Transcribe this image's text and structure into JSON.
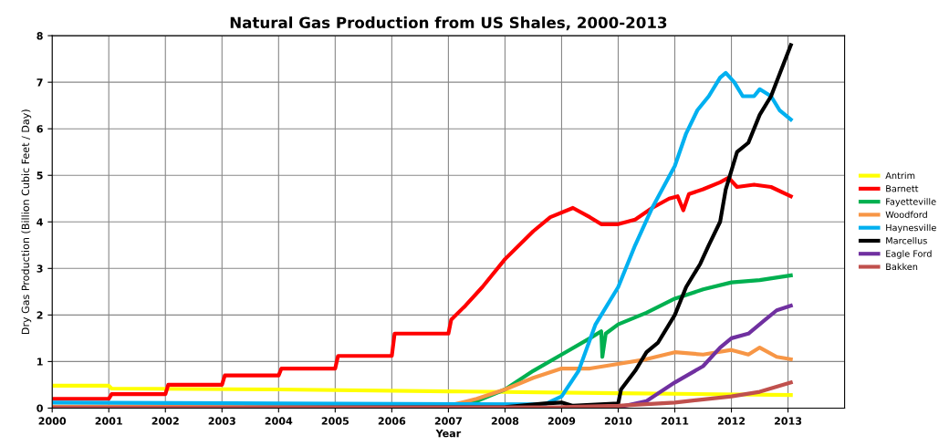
{
  "chart_data": {
    "type": "line",
    "title": "Natural Gas Production from US Shales, 2000-2013",
    "xlabel": "Year",
    "ylabel": "Dry Gas Production (Billion Cubic Feet / Day)",
    "xlim": [
      2000,
      2014
    ],
    "xticks": [
      2000,
      2001,
      2002,
      2003,
      2004,
      2005,
      2006,
      2007,
      2008,
      2009,
      2010,
      2011,
      2012,
      2013
    ],
    "ylim": [
      0,
      8
    ],
    "yticks": [
      0,
      1,
      2,
      3,
      4,
      5,
      6,
      7,
      8
    ],
    "grid": true,
    "legend": "right",
    "marker": "none",
    "line_style": "solid",
    "series": [
      {
        "name": "Antrim",
        "color": "#ffff00",
        "x": [
          2000,
          2001,
          2001.05,
          2004,
          2007,
          2010,
          2013.05
        ],
        "values": [
          0.48,
          0.48,
          0.42,
          0.4,
          0.36,
          0.32,
          0.28
        ]
      },
      {
        "name": "Barnett",
        "color": "#ff0000",
        "x": [
          2000,
          2001,
          2001.05,
          2002,
          2002.05,
          2003,
          2003.05,
          2004,
          2004.05,
          2005,
          2005.05,
          2006,
          2006.05,
          2007,
          2007.05,
          2007.3,
          2007.6,
          2008,
          2008.5,
          2008.8,
          2009.2,
          2009.5,
          2009.7,
          2010,
          2010.3,
          2010.6,
          2010.9,
          2011.05,
          2011.15,
          2011.25,
          2011.5,
          2011.8,
          2011.95,
          2012.1,
          2012.4,
          2012.7,
          2013.05
        ],
        "values": [
          0.2,
          0.2,
          0.3,
          0.3,
          0.5,
          0.5,
          0.7,
          0.7,
          0.85,
          0.85,
          1.12,
          1.12,
          1.6,
          1.6,
          1.9,
          2.2,
          2.6,
          3.2,
          3.8,
          4.1,
          4.3,
          4.1,
          3.95,
          3.95,
          4.05,
          4.3,
          4.5,
          4.55,
          4.25,
          4.6,
          4.7,
          4.85,
          4.95,
          4.75,
          4.8,
          4.75,
          4.55
        ]
      },
      {
        "name": "Fayetteville",
        "color": "#00b050",
        "x": [
          2007,
          2007.5,
          2008,
          2008.5,
          2009,
          2009.5,
          2009.7,
          2009.72,
          2009.78,
          2010,
          2010.5,
          2011,
          2011.5,
          2012,
          2012.5,
          2013.05
        ],
        "values": [
          0.02,
          0.15,
          0.4,
          0.8,
          1.15,
          1.5,
          1.65,
          1.1,
          1.6,
          1.8,
          2.05,
          2.35,
          2.55,
          2.7,
          2.75,
          2.85
        ]
      },
      {
        "name": "Woodford",
        "color": "#f79646",
        "x": [
          2000,
          2007,
          2007.5,
          2008,
          2008.5,
          2009,
          2009.5,
          2010,
          2010.5,
          2011,
          2011.5,
          2012,
          2012.3,
          2012.5,
          2012.8,
          2013.05
        ],
        "values": [
          0.03,
          0.05,
          0.2,
          0.4,
          0.65,
          0.85,
          0.85,
          0.95,
          1.05,
          1.2,
          1.15,
          1.25,
          1.15,
          1.3,
          1.1,
          1.05
        ]
      },
      {
        "name": "Haynesville",
        "color": "#00b0f0",
        "x": [
          2000,
          2004,
          2008.7,
          2009,
          2009.3,
          2009.6,
          2010,
          2010.3,
          2010.6,
          2011,
          2011.2,
          2011.4,
          2011.6,
          2011.8,
          2011.9,
          2012.05,
          2012.2,
          2012.4,
          2012.5,
          2012.7,
          2012.85,
          2013.05
        ],
        "values": [
          0.12,
          0.1,
          0.08,
          0.25,
          0.8,
          1.8,
          2.6,
          3.5,
          4.3,
          5.2,
          5.9,
          6.4,
          6.7,
          7.1,
          7.2,
          7.0,
          6.7,
          6.7,
          6.85,
          6.7,
          6.4,
          6.2
        ]
      },
      {
        "name": "Marcellus",
        "color": "#000000",
        "x": [
          2000,
          2008,
          2008.7,
          2009,
          2009.2,
          2010,
          2010.05,
          2010.3,
          2010.5,
          2010.7,
          2011,
          2011.2,
          2011.45,
          2011.6,
          2011.8,
          2011.9,
          2012.1,
          2012.3,
          2012.5,
          2012.7,
          2013.05
        ],
        "values": [
          0.0,
          0.02,
          0.1,
          0.12,
          0.05,
          0.1,
          0.4,
          0.8,
          1.2,
          1.4,
          2.0,
          2.6,
          3.1,
          3.5,
          4.0,
          4.7,
          5.5,
          5.7,
          6.3,
          6.7,
          7.8
        ]
      },
      {
        "name": "Eagle Ford",
        "color": "#7030a0",
        "x": [
          2010,
          2010.5,
          2011,
          2011.5,
          2011.8,
          2012,
          2012.3,
          2012.6,
          2012.8,
          2013.05
        ],
        "values": [
          0.02,
          0.15,
          0.55,
          0.9,
          1.3,
          1.5,
          1.6,
          1.9,
          2.1,
          2.2
        ]
      },
      {
        "name": "Bakken",
        "color": "#c0504d",
        "x": [
          2000,
          2009,
          2010,
          2011,
          2012,
          2012.5,
          2013.05
        ],
        "values": [
          0.01,
          0.02,
          0.05,
          0.12,
          0.25,
          0.35,
          0.55
        ]
      }
    ]
  }
}
